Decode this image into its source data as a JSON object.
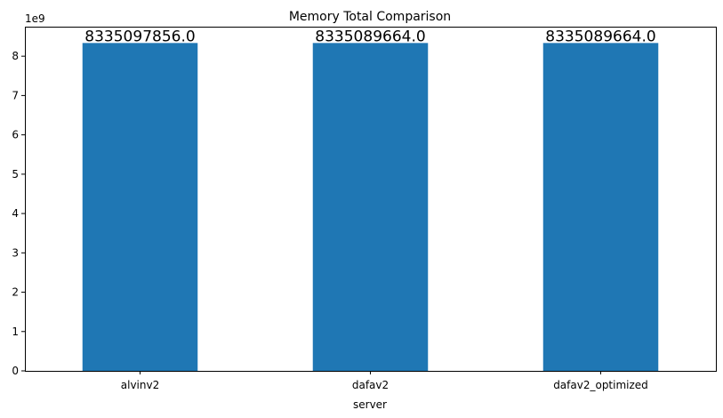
{
  "chart_data": {
    "type": "bar",
    "title": "Memory Total Comparison",
    "xlabel": "server",
    "ylabel": "",
    "categories": [
      "alvinv2",
      "dafav2",
      "dafav2_optimized"
    ],
    "values": [
      8335097856.0,
      8335089664.0,
      8335089664.0
    ],
    "data_labels": [
      "8335097856.0",
      "8335089664.0",
      "8335089664.0"
    ],
    "y_scale_note": "1e9",
    "ylim": [
      0,
      8.75
    ],
    "yticks": [
      0,
      1,
      2,
      3,
      4,
      5,
      6,
      7,
      8
    ],
    "ytick_labels": [
      "0",
      "1",
      "2",
      "3",
      "4",
      "5",
      "6",
      "7",
      "8"
    ],
    "grid": false,
    "bar_color": "#1f77b4"
  }
}
